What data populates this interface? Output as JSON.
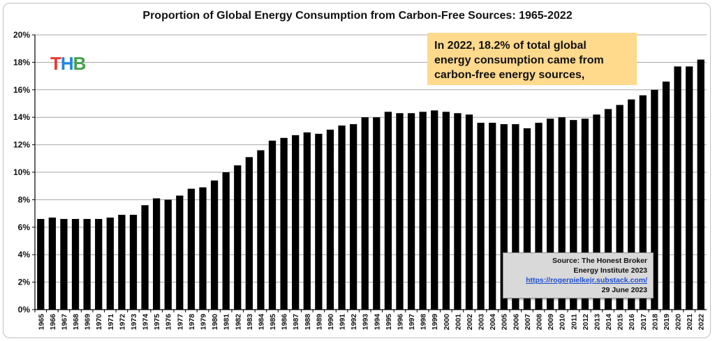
{
  "chart_data": {
    "type": "bar",
    "title": "Proportion of Global Energy Consumption from Carbon-Free Sources:  1965-2022",
    "xlabel": "",
    "ylabel": "",
    "ylim": [
      0,
      20
    ],
    "ytick_labels": [
      "0%",
      "2%",
      "4%",
      "6%",
      "8%",
      "10%",
      "12%",
      "14%",
      "16%",
      "18%",
      "20%"
    ],
    "ytick_values": [
      0,
      2,
      4,
      6,
      8,
      10,
      12,
      14,
      16,
      18,
      20
    ],
    "grid": true,
    "legend": "none",
    "bar_color": "#000000",
    "categories": [
      "1965",
      "1966",
      "1967",
      "1968",
      "1969",
      "1970",
      "1971",
      "1972",
      "1973",
      "1974",
      "1975",
      "1976",
      "1977",
      "1978",
      "1979",
      "1980",
      "1981",
      "1982",
      "1983",
      "1984",
      "1985",
      "1986",
      "1987",
      "1988",
      "1989",
      "1990",
      "1991",
      "1992",
      "1993",
      "1994",
      "1995",
      "1996",
      "1997",
      "1998",
      "1999",
      "2000",
      "2001",
      "2002",
      "2003",
      "2004",
      "2005",
      "2006",
      "2007",
      "2008",
      "2009",
      "2010",
      "2011",
      "2012",
      "2013",
      "2014",
      "2015",
      "2016",
      "2017",
      "2018",
      "2019",
      "2020",
      "2021",
      "2022"
    ],
    "values": [
      6.6,
      6.7,
      6.6,
      6.6,
      6.6,
      6.6,
      6.7,
      6.9,
      6.9,
      7.6,
      8.1,
      8.0,
      8.3,
      8.8,
      8.9,
      9.4,
      10.0,
      10.5,
      11.1,
      11.6,
      12.3,
      12.5,
      12.7,
      12.9,
      12.8,
      13.1,
      13.4,
      13.5,
      14.0,
      14.0,
      14.4,
      14.3,
      14.3,
      14.4,
      14.5,
      14.4,
      14.3,
      14.2,
      13.6,
      13.6,
      13.5,
      13.5,
      13.2,
      13.6,
      13.9,
      14.0,
      13.8,
      13.9,
      14.2,
      14.6,
      14.9,
      15.3,
      15.6,
      16.0,
      16.6,
      17.7,
      17.7,
      18.2
    ],
    "annotation": [
      "In 2022, 18.2% of total global",
      "energy consumption came from",
      "carbon-free energy sources,"
    ],
    "source": {
      "line1": "Source: The Honest Broker",
      "line2": "Energy Institute 2023",
      "link": "https://rogerpielkejr.substack.com/",
      "date": "29 June 2023"
    },
    "logo": {
      "t": "T",
      "h": "H",
      "b": "B"
    }
  }
}
